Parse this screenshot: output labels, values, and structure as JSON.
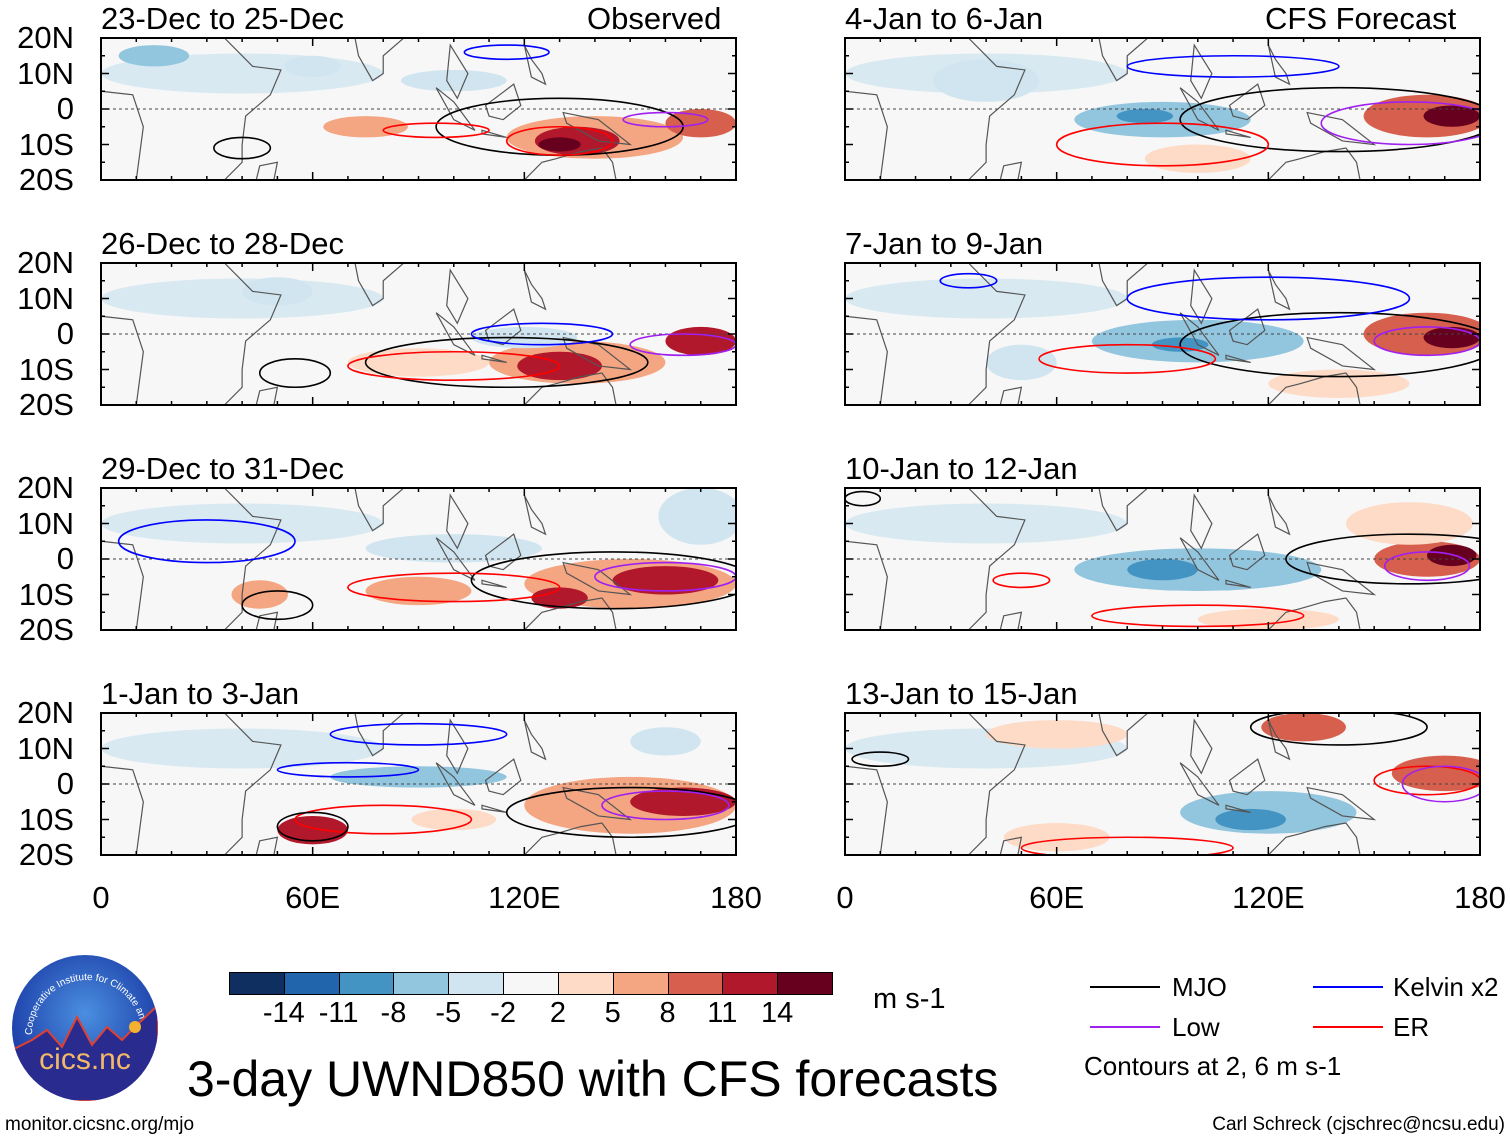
{
  "title": "3-day UWND850 with CFS forecasts",
  "column_labels": {
    "left": "Observed",
    "right": "CFS Forecast"
  },
  "panels_left": [
    "23-Dec to 25-Dec",
    "26-Dec to 28-Dec",
    "29-Dec to 31-Dec",
    "1-Jan to 3-Jan"
  ],
  "panels_right": [
    "4-Jan to 6-Jan",
    "7-Jan to 9-Jan",
    "10-Jan to 12-Jan",
    "13-Jan to 15-Jan"
  ],
  "lat_labels": [
    "20N",
    "10N",
    "0",
    "10S",
    "20S"
  ],
  "lon_labels": [
    "0",
    "60E",
    "120E",
    "180"
  ],
  "colorbar": {
    "labels": [
      "-14",
      "-11",
      "-8",
      "-5",
      "-2",
      "2",
      "5",
      "8",
      "11",
      "14"
    ],
    "colors": [
      "#0f2f60",
      "#2166ac",
      "#4393c3",
      "#92c5de",
      "#d1e5f0",
      "#f7f7f7",
      "#fddbc7",
      "#f4a582",
      "#d6604d",
      "#b2182b",
      "#67001f"
    ],
    "units": "m s-1"
  },
  "legend": {
    "items": [
      {
        "label": "MJO",
        "color": "#000000"
      },
      {
        "label": "Kelvin x2",
        "color": "#0000ff"
      },
      {
        "label": "Low",
        "color": "#a020f0"
      },
      {
        "label": "ER",
        "color": "#ff0000"
      }
    ],
    "note": "Contours at 2, 6 m s-1"
  },
  "logo": {
    "text": "cics.nc",
    "ring_text": "Cooperative Institute for Climate and Satellites"
  },
  "footer": {
    "left": "monitor.cicsnc.org/mjo",
    "right": "Carl Schreck (cjschrec@ncsu.edu)"
  }
}
